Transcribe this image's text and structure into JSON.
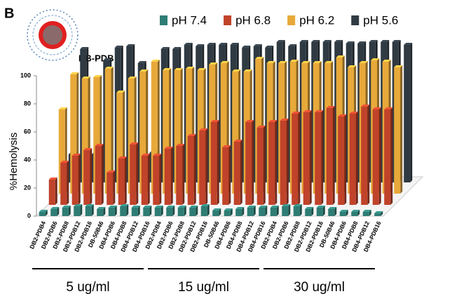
{
  "chart_data": {
    "type": "bar3d",
    "panel_label": "B",
    "subtitle": "DB-PDB",
    "ylabel": "%Hemolysis",
    "categories": [
      "DB2-PDB4",
      "DB2-PDB6",
      "DB2-PDB8",
      "DB2-PDB12",
      "DB2-PDB16",
      "DB-50B46",
      "DB4-PDB6",
      "DB4-PDB8",
      "DB4-PDB12",
      "DB4-PDB16",
      "DB2-PDB4",
      "DB2-PDB6",
      "DB2-PDB8",
      "DB2-PDB12",
      "DB2-PDB16",
      "DB-50B46",
      "DB4-PDB6",
      "DB4-PDB8",
      "DB4-PDB12",
      "DB4-PDB16",
      "DB2-PDB4",
      "DB2-PDB6",
      "DB2-PDB8",
      "DB2-PDB12",
      "DB2-PDB16",
      "DB-50B46",
      "DB4-PDB6",
      "DB4-PDB8",
      "DB4-PDB12",
      "DB4-PDB16"
    ],
    "groups": [
      "5 ug/ml",
      "15 ug/ml",
      "30 ug/ml"
    ],
    "series": [
      {
        "name": "pH 7.4",
        "color": "#2e7d74",
        "values": [
          3,
          5,
          6,
          7,
          7,
          5,
          6,
          7,
          6,
          6,
          6,
          6,
          6,
          6,
          7,
          4,
          4,
          5,
          6,
          6,
          6,
          7,
          7,
          5,
          6,
          5,
          3,
          3,
          3,
          2
        ]
      },
      {
        "name": "pH 6.8",
        "color": "#c0432a",
        "values": [
          18,
          30,
          35,
          39,
          42,
          23,
          33,
          43,
          35,
          35,
          40,
          42,
          49,
          53,
          59,
          41,
          45,
          59,
          55,
          59,
          60,
          65,
          66,
          66,
          69,
          63,
          65,
          70,
          68,
          68
        ]
      },
      {
        "name": "pH 6.2",
        "color": "#e8a93a",
        "values": [
          60,
          85,
          82,
          83,
          89,
          72,
          82,
          87,
          94,
          88,
          88,
          89,
          88,
          92,
          93,
          87,
          87,
          96,
          93,
          93,
          94,
          93,
          93,
          93,
          97,
          90,
          93,
          95,
          94,
          90
        ]
      },
      {
        "name": "pH 5.6",
        "color": "#2f3a43",
        "values": [
          20,
          95,
          20,
          87,
          96,
          97,
          85,
          21,
          95,
          95,
          98,
          97,
          98,
          98,
          98,
          96,
          97,
          96,
          100,
          97,
          100,
          100,
          100,
          100,
          99,
          99,
          100,
          100,
          100,
          98
        ]
      }
    ],
    "ylim": [
      0,
      100
    ],
    "yticks": [
      0,
      20,
      40,
      60,
      80,
      100
    ]
  }
}
